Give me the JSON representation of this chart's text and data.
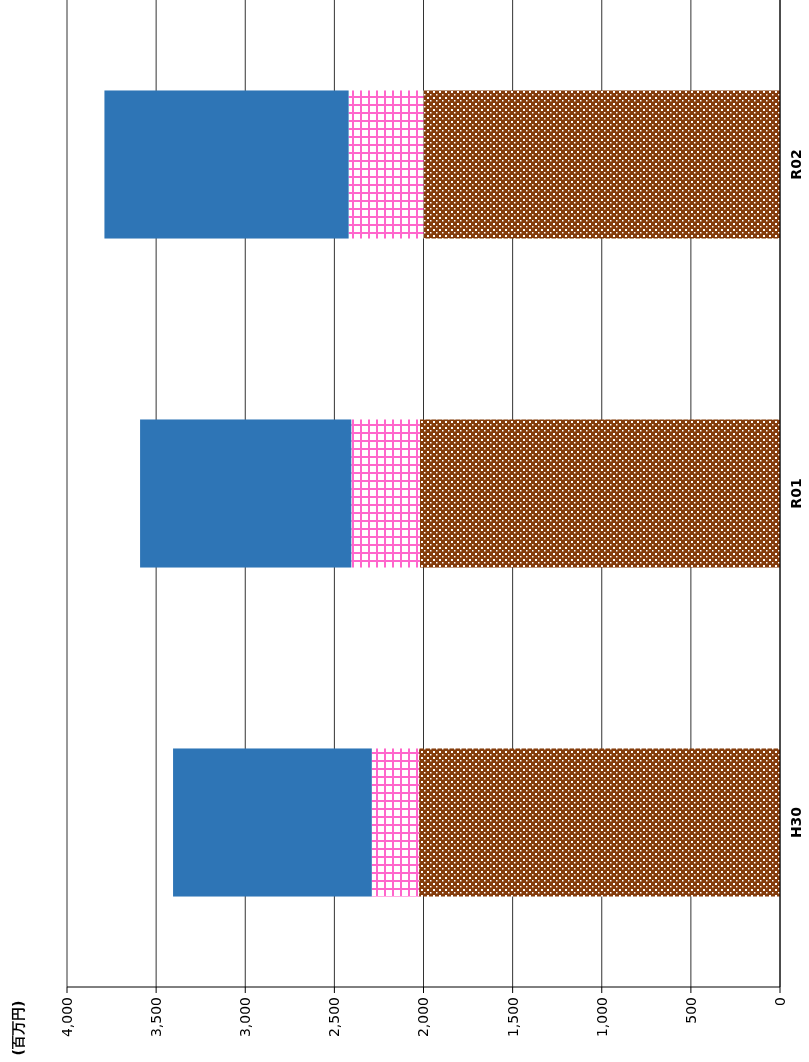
{
  "chart_data": {
    "type": "bar",
    "stacked": true,
    "orientation": "horizontal",
    "annotations": [
      "(百万円)"
    ],
    "categories": [
      "R02",
      "R01",
      "H30"
    ],
    "series": [
      {
        "color": "#843c0c",
        "values": [
          2000,
          2020,
          2025
        ]
      },
      {
        "color": "#ff66cc",
        "values": [
          420,
          385,
          265
        ]
      },
      {
        "color": "#2e75b6",
        "values": [
          1370,
          1185,
          1115
        ]
      }
    ],
    "xlim": [
      4000,
      0
    ],
    "xticks": [
      {
        "value": 4000,
        "label": "4,000"
      },
      {
        "value": 3500,
        "label": "3,500"
      },
      {
        "value": 3000,
        "label": "3,000"
      },
      {
        "value": 2500,
        "label": "2,500"
      },
      {
        "value": 2000,
        "label": "2,000"
      },
      {
        "value": 1500,
        "label": "1,500"
      },
      {
        "value": 1000,
        "label": "1,000"
      },
      500,
      0
    ],
    "grid": "x"
  }
}
